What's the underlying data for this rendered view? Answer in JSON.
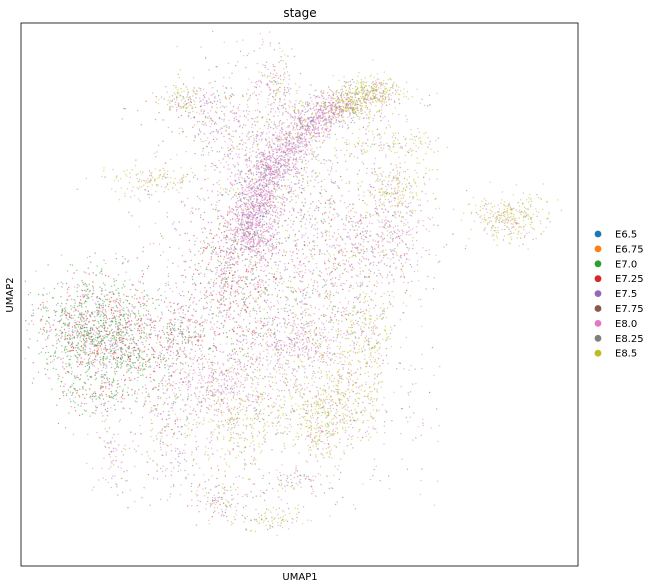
{
  "chart_data": {
    "type": "scatter",
    "title": "stage",
    "xlabel": "UMAP1",
    "ylabel": "UMAP2",
    "grid": false,
    "ticks": false,
    "legend_position": "right",
    "series": [
      {
        "name": "E6.5",
        "color": "#1f77b4"
      },
      {
        "name": "E6.75",
        "color": "#ff7f0e"
      },
      {
        "name": "E7.0",
        "color": "#2ca02c"
      },
      {
        "name": "E7.25",
        "color": "#d62728"
      },
      {
        "name": "E7.5",
        "color": "#9467bd"
      },
      {
        "name": "E7.75",
        "color": "#8c564b"
      },
      {
        "name": "E8.0",
        "color": "#e377c2"
      },
      {
        "name": "E8.25",
        "color": "#7f7f7f"
      },
      {
        "name": "E8.5",
        "color": "#bcbd22"
      }
    ]
  }
}
